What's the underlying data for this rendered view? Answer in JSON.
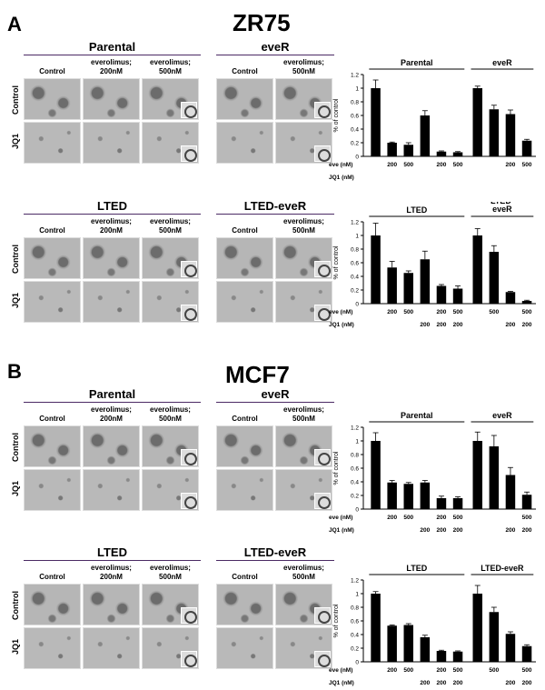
{
  "panels": [
    {
      "letter": "A",
      "cell_line": "ZR75"
    },
    {
      "letter": "B",
      "cell_line": "MCF7"
    }
  ],
  "image_groups": {
    "parental": "Parental",
    "ever": "eveR",
    "lted": "LTED",
    "lted_ever": "LTED-eveR"
  },
  "col_labels": {
    "control": "Control",
    "eve200": "everolimus;\n200nM",
    "eve500": "everolimus;\n500nM"
  },
  "row_labels": {
    "control": "Control",
    "jq1": "JQ1"
  },
  "chart_data": [
    {
      "type": "bar",
      "group_labels": [
        "Parental",
        "eveR"
      ],
      "ylabel": "% of control",
      "ylim": [
        0,
        1.2
      ],
      "yticks": [
        "0",
        "0.2",
        "0.4",
        "0.6",
        "0.8",
        "1",
        "1.2"
      ],
      "row_labels": [
        "eve (nM)",
        "JQ1 (nM)"
      ],
      "eve": [
        "",
        "200",
        "500",
        "",
        "200",
        "500",
        "",
        "",
        "200",
        "500"
      ],
      "jq1": [
        "",
        "",
        "",
        "",
        "",
        "",
        "",
        "",
        "",
        ""
      ],
      "values": [
        1.0,
        0.2,
        0.17,
        0.6,
        0.07,
        0.06,
        1.0,
        0.69,
        0.62,
        0.23
      ],
      "errors": [
        0.12,
        0.01,
        0.03,
        0.07,
        0.01,
        0.01,
        0.03,
        0.06,
        0.06,
        0.02
      ],
      "groups": [
        [
          0,
          5
        ],
        [
          6,
          9
        ]
      ]
    },
    {
      "type": "bar",
      "group_labels": [
        "LTED",
        "LTED-\neveR"
      ],
      "ylabel": "% of control",
      "ylim": [
        0,
        1.2
      ],
      "yticks": [
        "0",
        "0.2",
        "0.4",
        "0.6",
        "0.8",
        "1",
        "1.2"
      ],
      "row_labels": [
        "eve (nM)",
        "JQ1 (nM)"
      ],
      "eve": [
        "",
        "200",
        "500",
        "",
        "200",
        "500",
        "",
        "500",
        "",
        "500"
      ],
      "jq1": [
        "",
        "",
        "",
        "200",
        "200",
        "200",
        "",
        "",
        "200",
        "200"
      ],
      "values": [
        1.0,
        0.53,
        0.45,
        0.65,
        0.26,
        0.22,
        1.0,
        0.76,
        0.17,
        0.04
      ],
      "errors": [
        0.18,
        0.09,
        0.03,
        0.12,
        0.02,
        0.04,
        0.1,
        0.09,
        0.01,
        0.01
      ],
      "groups": [
        [
          0,
          5
        ],
        [
          6,
          9
        ]
      ]
    },
    {
      "type": "bar",
      "group_labels": [
        "Parental",
        "eveR"
      ],
      "ylabel": "% of control",
      "ylim": [
        0,
        1.2
      ],
      "yticks": [
        "0",
        "0.2",
        "0.4",
        "0.6",
        "0.8",
        "1",
        "1.2"
      ],
      "row_labels": [
        "eve (nM)",
        "JQ1 (nM)"
      ],
      "eve": [
        "",
        "200",
        "500",
        "",
        "200",
        "500",
        "",
        "",
        "",
        "500"
      ],
      "jq1": [
        "",
        "",
        "",
        "200",
        "200",
        "200",
        "",
        "",
        "200",
        "200"
      ],
      "values": [
        1.0,
        0.39,
        0.37,
        0.39,
        0.16,
        0.16,
        1.0,
        0.92,
        0.5,
        0.21
      ],
      "errors": [
        0.12,
        0.03,
        0.02,
        0.03,
        0.03,
        0.02,
        0.13,
        0.16,
        0.11,
        0.04
      ],
      "groups": [
        [
          0,
          5
        ],
        [
          6,
          9
        ]
      ]
    },
    {
      "type": "bar",
      "group_labels": [
        "LTED",
        "LTED-eveR"
      ],
      "ylabel": "% of control",
      "ylim": [
        0,
        1.2
      ],
      "yticks": [
        "0",
        "0.2",
        "0.4",
        "0.6",
        "0.8",
        "1",
        "1.2"
      ],
      "row_labels": [
        "eve (nM)",
        "JQ1 (nM)"
      ],
      "eve": [
        "",
        "200",
        "500",
        "",
        "200",
        "500",
        "",
        "500",
        "",
        "500"
      ],
      "jq1": [
        "",
        "",
        "",
        "200",
        "200",
        "200",
        "",
        "",
        "200",
        "200"
      ],
      "values": [
        1.0,
        0.53,
        0.54,
        0.36,
        0.16,
        0.15,
        1.0,
        0.73,
        0.41,
        0.23
      ],
      "errors": [
        0.03,
        0.01,
        0.02,
        0.03,
        0.01,
        0.01,
        0.12,
        0.07,
        0.03,
        0.02
      ],
      "groups": [
        [
          0,
          5
        ],
        [
          6,
          9
        ]
      ]
    }
  ]
}
